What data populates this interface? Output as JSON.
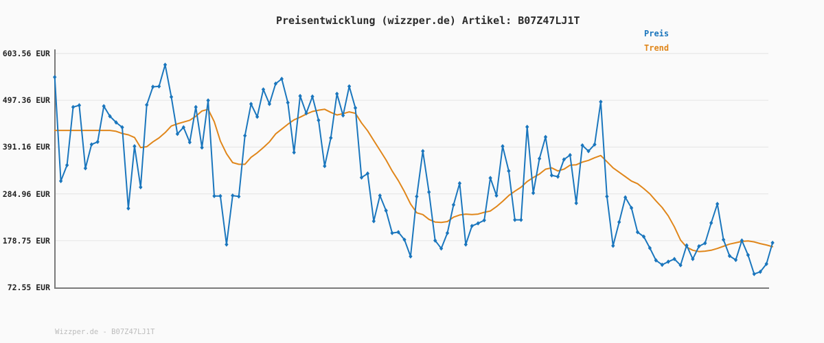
{
  "header": {
    "title": "Preisentwicklung (wizzper.de) Artikel: B07Z47LJ1T",
    "watermark": "Wizzper.de - B07Z47LJ1T"
  },
  "legend": {
    "preis_label": "Preis",
    "trend_label": "Trend"
  },
  "colors": {
    "preis": "#1a76bd",
    "trend": "#e0861a",
    "grid": "#e7e7e7",
    "spine": "#7a7a7a",
    "background": "#fafafa",
    "title_text": "#2b2b2b",
    "tick_text": "#222222",
    "watermark_text": "#bcbcbc"
  },
  "chart_data": {
    "type": "line",
    "title": "Preisentwicklung (wizzper.de) Artikel: B07Z47LJ1T",
    "xlabel": "",
    "ylabel": "",
    "ylim": [
      72.55,
      603.56
    ],
    "grid": true,
    "legend_position": "top-right",
    "y_ticks": [
      {
        "label": "603.56 EUR",
        "value": 603.56
      },
      {
        "label": "497.36 EUR",
        "value": 497.36
      },
      {
        "label": "391.16 EUR",
        "value": 391.16
      },
      {
        "label": "284.96 EUR",
        "value": 284.96
      },
      {
        "label": "178.75 EUR",
        "value": 178.75
      },
      {
        "label": "72.55 EUR",
        "value": 72.55
      }
    ],
    "series": [
      {
        "name": "Preis",
        "color": "#1a76bd",
        "marker": "diamond",
        "values": [
          550,
          314,
          350,
          482,
          486,
          343,
          397,
          403,
          484,
          461,
          447,
          436,
          252,
          393,
          300,
          487,
          528,
          529,
          578,
          505,
          421,
          436,
          402,
          482,
          390,
          497,
          280,
          280,
          170,
          281,
          279,
          417,
          489,
          460,
          522,
          489,
          535,
          546,
          492,
          379,
          507,
          468,
          506,
          452,
          348,
          412,
          512,
          463,
          529,
          480,
          322,
          331,
          223,
          281,
          247,
          196,
          198,
          181,
          143,
          279,
          382,
          289,
          179,
          161,
          196,
          260,
          309,
          170,
          212,
          218,
          225,
          321,
          281,
          393,
          337,
          226,
          226,
          437,
          287,
          365,
          414,
          327,
          324,
          363,
          373,
          264,
          395,
          382,
          397,
          494,
          279,
          167,
          221,
          277,
          253,
          198,
          188,
          162,
          134,
          124,
          131,
          137,
          123,
          168,
          137,
          166,
          173,
          219,
          262,
          181,
          144,
          135,
          179,
          146,
          103,
          108,
          126,
          174
        ]
      },
      {
        "name": "Trend",
        "color": "#e0861a",
        "marker": "none",
        "values": [
          429,
          429,
          429,
          429,
          429,
          429,
          429,
          429,
          429,
          429,
          427,
          422,
          419,
          413,
          390,
          392,
          403,
          412,
          424,
          439,
          444,
          448,
          452,
          461,
          473,
          477,
          449,
          405,
          376,
          356,
          352,
          352,
          368,
          378,
          390,
          403,
          421,
          432,
          443,
          453,
          459,
          466,
          472,
          475,
          477,
          470,
          464,
          467,
          471,
          468,
          446,
          428,
          406,
          384,
          362,
          337,
          315,
          290,
          262,
          242,
          238,
          227,
          221,
          220,
          222,
          232,
          237,
          239,
          238,
          239,
          243,
          246,
          256,
          268,
          281,
          291,
          300,
          313,
          322,
          330,
          341,
          344,
          337,
          341,
          350,
          351,
          357,
          361,
          367,
          372,
          358,
          344,
          334,
          324,
          314,
          308,
          297,
          285,
          269,
          254,
          235,
          210,
          180,
          164,
          157,
          154,
          155,
          157,
          161,
          166,
          171,
          174,
          177,
          178,
          176,
          172,
          169,
          165
        ]
      }
    ]
  }
}
